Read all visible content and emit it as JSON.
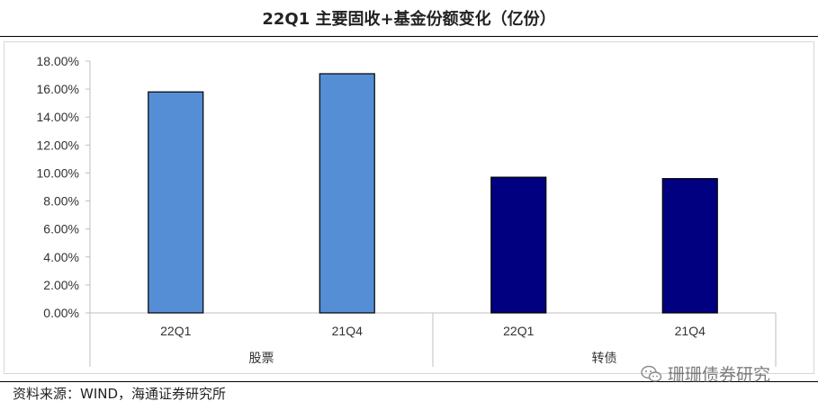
{
  "chart_data": {
    "type": "bar",
    "title": "22Q1 主要固收+基金份额变化（亿份）",
    "xlabel": "",
    "ylabel": "",
    "ylim": [
      0,
      0.18
    ],
    "yticks": [
      "0.00%",
      "2.00%",
      "4.00%",
      "6.00%",
      "8.00%",
      "10.00%",
      "12.00%",
      "14.00%",
      "16.00%",
      "18.00%"
    ],
    "ytick_values": [
      0,
      0.02,
      0.04,
      0.06,
      0.08,
      0.1,
      0.12,
      0.14,
      0.16,
      0.18
    ],
    "grid": false,
    "groups": [
      {
        "label": "股票",
        "color": "#558ED5",
        "bars": [
          {
            "category": "22Q1",
            "value": 0.158
          },
          {
            "category": "21Q4",
            "value": 0.171
          }
        ]
      },
      {
        "label": "转债",
        "color": "#000080",
        "bars": [
          {
            "category": "22Q1",
            "value": 0.097
          },
          {
            "category": "21Q4",
            "value": 0.096
          }
        ]
      }
    ]
  },
  "footer": {
    "source": "资料来源：WIND，海通证券研究所",
    "watermark": "珊珊债券研究",
    "watermark_icon": "wechat-icon"
  }
}
